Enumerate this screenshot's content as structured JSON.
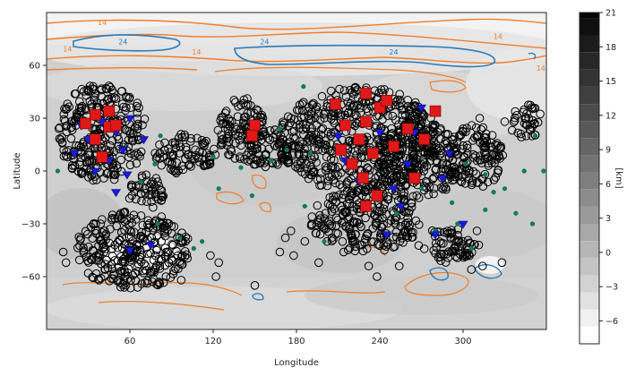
{
  "chart_data": {
    "type": "scatter",
    "title": "",
    "xlabel": "Longitude",
    "ylabel": "Latitude",
    "xlim": [
      0,
      360
    ],
    "ylim": [
      -90,
      90
    ],
    "x_ticks": [
      60,
      120,
      180,
      240,
      300
    ],
    "y_ticks": [
      60,
      30,
      0,
      -30,
      -60
    ],
    "background": "elevation map (grayscale, km)",
    "colorbar": {
      "label": "[km]",
      "min": -8,
      "max": 21,
      "ticks": [
        21,
        18,
        15,
        12,
        9,
        6,
        3,
        0,
        -3,
        -6
      ]
    },
    "contour_labels": [
      {
        "text": "14",
        "color": "#f07e2a",
        "lon": 40,
        "lat": 83
      },
      {
        "text": "24",
        "color": "#2b7bb9",
        "lon": 55,
        "lat": 72
      },
      {
        "text": "14",
        "color": "#f07e2a",
        "lon": 108,
        "lat": 66
      },
      {
        "text": "14",
        "color": "#f07e2a",
        "lon": 15,
        "lat": 68
      },
      {
        "text": "24",
        "color": "#2b7bb9",
        "lon": 157,
        "lat": 72
      },
      {
        "text": "24",
        "color": "#2b7bb9",
        "lon": 250,
        "lat": 66
      },
      {
        "text": "14",
        "color": "#f07e2a",
        "lon": 325,
        "lat": 75
      },
      {
        "text": "14",
        "color": "#f07e2a",
        "lon": 356,
        "lat": 57
      }
    ],
    "series": [
      {
        "marker": "circle-open",
        "color": "#000000"
      },
      {
        "marker": "triangle-down",
        "color": "#1a1adf"
      },
      {
        "marker": "square",
        "color": "#e01818"
      },
      {
        "marker": "circle",
        "color": "#0f7a5a"
      }
    ],
    "regions_open_circles": [
      {
        "lon": 40,
        "lat": 22,
        "rlon": 32,
        "rlat": 28
      },
      {
        "lon": 100,
        "lat": 10,
        "rlon": 22,
        "rlat": 12
      },
      {
        "lon": 140,
        "lat": 24,
        "rlon": 18,
        "rlat": 18
      },
      {
        "lon": 160,
        "lat": 12,
        "rlon": 18,
        "rlat": 12
      },
      {
        "lon": 72,
        "lat": -12,
        "rlon": 14,
        "rlat": 10
      },
      {
        "lon": 62,
        "lat": -45,
        "rlon": 42,
        "rlat": 22
      },
      {
        "lon": 225,
        "lat": 18,
        "rlon": 58,
        "rlat": 30
      },
      {
        "lon": 268,
        "lat": 6,
        "rlon": 30,
        "rlat": 22
      },
      {
        "lon": 230,
        "lat": -28,
        "rlon": 40,
        "rlat": 18
      },
      {
        "lon": 308,
        "lat": 8,
        "rlon": 22,
        "rlat": 18
      },
      {
        "lon": 345,
        "lat": 28,
        "rlon": 12,
        "rlat": 10
      },
      {
        "lon": 290,
        "lat": -42,
        "rlon": 22,
        "rlat": 10
      }
    ],
    "blue_triangles": [
      [
        20,
        10
      ],
      [
        30,
        18
      ],
      [
        40,
        28
      ],
      [
        45,
        6
      ],
      [
        50,
        22
      ],
      [
        55,
        12
      ],
      [
        60,
        30
      ],
      [
        35,
        0
      ],
      [
        25,
        26
      ],
      [
        70,
        18
      ],
      [
        58,
        -2
      ],
      [
        50,
        -12
      ],
      [
        75,
        -42
      ],
      [
        60,
        -45
      ],
      [
        150,
        26
      ],
      [
        210,
        20
      ],
      [
        215,
        6
      ],
      [
        225,
        -6
      ],
      [
        235,
        10
      ],
      [
        240,
        22
      ],
      [
        250,
        -10
      ],
      [
        260,
        4
      ],
      [
        265,
        22
      ],
      [
        270,
        36
      ],
      [
        255,
        -20
      ],
      [
        245,
        -36
      ],
      [
        280,
        -36
      ],
      [
        300,
        -30
      ],
      [
        285,
        -4
      ],
      [
        290,
        10
      ]
    ],
    "red_squares": [
      [
        28,
        27
      ],
      [
        35,
        32
      ],
      [
        45,
        34
      ],
      [
        45,
        25
      ],
      [
        50,
        26
      ],
      [
        35,
        18
      ],
      [
        40,
        8
      ],
      [
        150,
        26
      ],
      [
        148,
        20
      ],
      [
        208,
        38
      ],
      [
        215,
        26
      ],
      [
        212,
        12
      ],
      [
        220,
        4
      ],
      [
        225,
        18
      ],
      [
        230,
        28
      ],
      [
        228,
        -4
      ],
      [
        235,
        10
      ],
      [
        238,
        -14
      ],
      [
        240,
        36
      ],
      [
        250,
        14
      ],
      [
        260,
        24
      ],
      [
        272,
        18
      ],
      [
        230,
        44
      ],
      [
        245,
        40
      ],
      [
        280,
        34
      ],
      [
        265,
        -4
      ],
      [
        230,
        -20
      ]
    ],
    "green_points": [
      [
        8,
        0
      ],
      [
        68,
        -6
      ],
      [
        80,
        -30
      ],
      [
        96,
        -38
      ],
      [
        106,
        -44
      ],
      [
        112,
        -40
      ],
      [
        140,
        2
      ],
      [
        162,
        6
      ],
      [
        168,
        24
      ],
      [
        173,
        12
      ],
      [
        148,
        -14
      ],
      [
        186,
        -20
      ],
      [
        200,
        -40
      ],
      [
        185,
        48
      ],
      [
        190,
        10
      ],
      [
        252,
        -24
      ],
      [
        270,
        -10
      ],
      [
        280,
        -34
      ],
      [
        292,
        -18
      ],
      [
        296,
        -30
      ],
      [
        306,
        -44
      ],
      [
        316,
        -22
      ],
      [
        322,
        -12
      ],
      [
        330,
        -10
      ],
      [
        338,
        -24
      ],
      [
        344,
        0
      ],
      [
        350,
        -30
      ],
      [
        352,
        20
      ],
      [
        358,
        0
      ],
      [
        302,
        4
      ],
      [
        316,
        -2
      ],
      [
        78,
        4
      ],
      [
        82,
        20
      ],
      [
        120,
        8
      ],
      [
        124,
        -10
      ]
    ],
    "extra_outline_circles": [
      [
        12,
        -46
      ],
      [
        14,
        -52
      ],
      [
        30,
        -58
      ],
      [
        42,
        -56
      ],
      [
        86,
        -60
      ],
      [
        88,
        -52
      ],
      [
        97,
        -62
      ],
      [
        118,
        -48
      ],
      [
        124,
        -52
      ],
      [
        122,
        -60
      ],
      [
        150,
        -65
      ],
      [
        168,
        -46
      ],
      [
        172,
        -38
      ],
      [
        176,
        -34
      ],
      [
        178,
        -48
      ],
      [
        186,
        -40
      ],
      [
        196,
        -52
      ],
      [
        202,
        -40
      ],
      [
        214,
        -46
      ],
      [
        222,
        -40
      ],
      [
        238,
        -60
      ],
      [
        232,
        -54
      ],
      [
        254,
        -54
      ],
      [
        306,
        -56
      ],
      [
        314,
        -54
      ],
      [
        328,
        -52
      ],
      [
        310,
        -34
      ],
      [
        300,
        -48
      ],
      [
        320,
        14
      ],
      [
        330,
        28
      ],
      [
        300,
        24
      ],
      [
        312,
        30
      ],
      [
        346,
        26
      ]
    ]
  }
}
